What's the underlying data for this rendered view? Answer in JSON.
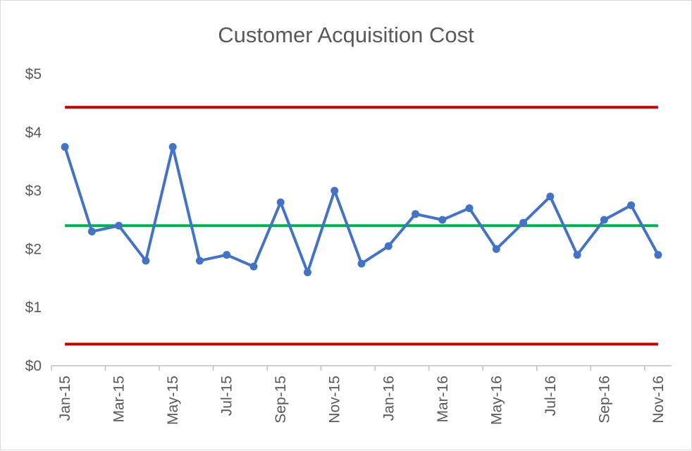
{
  "chart_data": {
    "type": "line",
    "title": "Customer Acquisition Cost",
    "xlabel": "",
    "ylabel": "",
    "ylim": [
      0,
      5
    ],
    "y_ticks": [
      "$0",
      "$1",
      "$2",
      "$3",
      "$4",
      "$5"
    ],
    "x_tick_labels": [
      "Jan-15",
      "Mar-15",
      "May-15",
      "Jul-15",
      "Sep-15",
      "Nov-15",
      "Jan-16",
      "Mar-16",
      "May-16",
      "Jul-16",
      "Sep-16",
      "Nov-16"
    ],
    "categories": [
      "Jan-15",
      "Feb-15",
      "Mar-15",
      "Apr-15",
      "May-15",
      "Jun-15",
      "Jul-15",
      "Aug-15",
      "Sep-15",
      "Oct-15",
      "Nov-15",
      "Dec-15",
      "Jan-16",
      "Feb-16",
      "Mar-16",
      "Apr-16",
      "May-16",
      "Jun-16",
      "Jul-16",
      "Aug-16",
      "Sep-16",
      "Oct-16",
      "Nov-16"
    ],
    "grid": false,
    "legend": "none",
    "series": [
      {
        "kind": "data",
        "color": "#4472c4",
        "values": [
          3.75,
          2.3,
          2.4,
          1.8,
          3.75,
          1.8,
          1.9,
          1.7,
          2.8,
          1.6,
          3.0,
          1.75,
          2.05,
          2.6,
          2.5,
          2.7,
          2.0,
          2.45,
          2.9,
          1.9,
          2.5,
          2.75,
          1.9
        ]
      },
      {
        "kind": "average",
        "color": "#00b050",
        "value": 2.4
      },
      {
        "kind": "upper-limit",
        "color": "#c00000",
        "value": 4.43
      },
      {
        "kind": "lower-limit",
        "color": "#c00000",
        "value": 0.37
      }
    ]
  }
}
